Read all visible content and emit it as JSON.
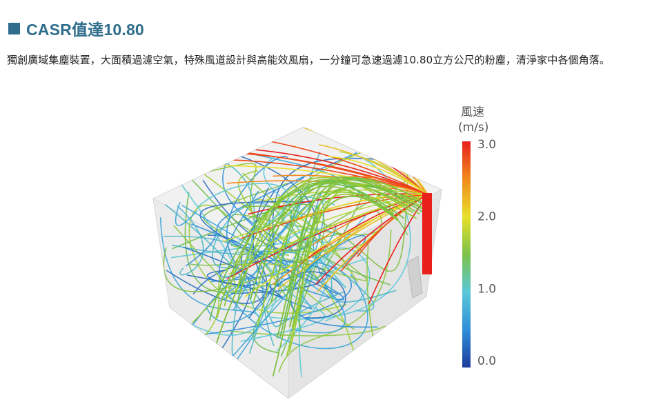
{
  "section": {
    "title": "CASR值達10.80",
    "description": "獨創廣域集塵裝置，大面積過濾空氣，特殊風道設計與高能效風扇，一分鐘可急速過濾10.80立方公尺的粉塵，清淨家中各個角落。"
  },
  "colorbar": {
    "title_line1": "風速",
    "title_line2": "(m/s)",
    "ticks": [
      {
        "value": 3.0,
        "label": "3.0"
      },
      {
        "value": 2.0,
        "label": "2.0"
      },
      {
        "value": 1.0,
        "label": "1.0"
      },
      {
        "value": 0.0,
        "label": "0.0"
      }
    ],
    "colors": [
      "#1e3d9c",
      "#2f8fd8",
      "#5ac8d8",
      "#7cc24a",
      "#e8e02a",
      "#f08a1c",
      "#e8201c"
    ]
  }
}
